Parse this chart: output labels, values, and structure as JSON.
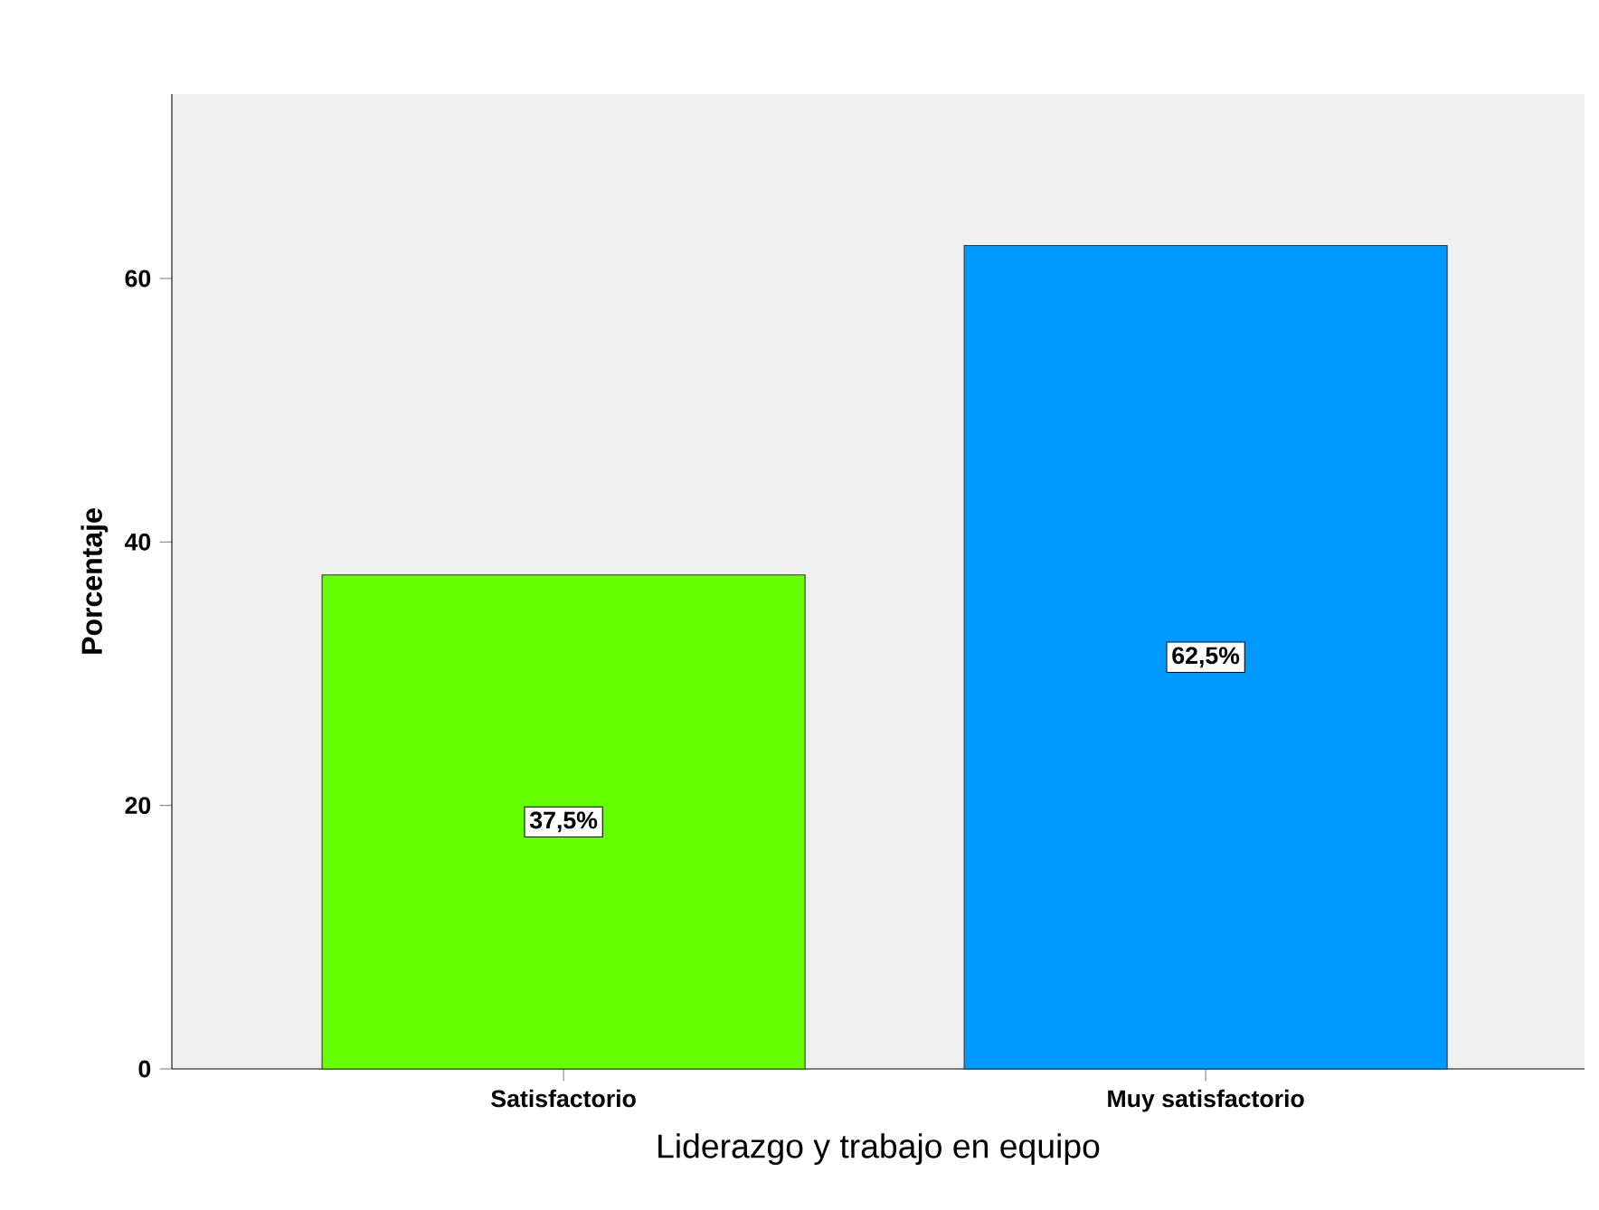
{
  "chart_data": {
    "type": "bar",
    "xlabel": "Liderazgo y trabajo en equipo",
    "ylabel": "Porcentaje",
    "categories": [
      "Satisfactorio",
      "Muy satisfactorio"
    ],
    "values": [
      37.5,
      62.5
    ],
    "colors": [
      "#66ff00",
      "#0099ff"
    ],
    "value_labels": [
      "37,5%",
      "62,5%"
    ],
    "ylim": [
      0,
      74
    ],
    "yticks": [
      0,
      20,
      40,
      60
    ],
    "grid": false
  }
}
